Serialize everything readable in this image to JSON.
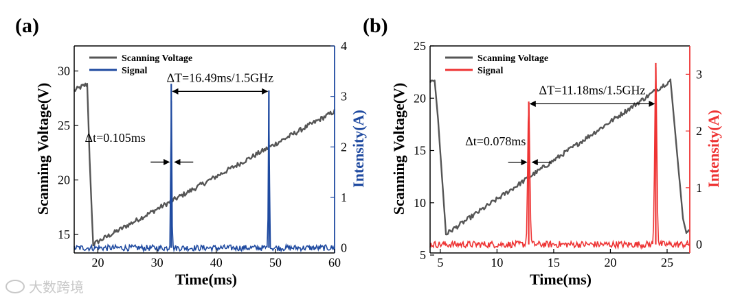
{
  "watermark": "大数跨境",
  "chart_data": [
    {
      "panel_label": "(a)",
      "type": "line",
      "xlabel": "Time(ms)",
      "ylabel_left": "Scanning Voltage(V)",
      "ylabel_right": "Intensity(A)",
      "right_axis_color": "#1f4aa0",
      "xlim": [
        16,
        60
      ],
      "ylim_left": [
        13.3,
        32.3
      ],
      "ylim_right": [
        -0.1,
        4
      ],
      "xticks": [
        20,
        30,
        40,
        50,
        60
      ],
      "yticks_left": [
        15,
        20,
        25,
        30
      ],
      "yticks_right": [
        0,
        1,
        2,
        3,
        4
      ],
      "legend": [
        "Scanning Voltage",
        "Signal"
      ],
      "series": [
        {
          "name": "Scanning Voltage",
          "axis": "left",
          "color": "#555555",
          "points": [
            [
              16,
              28.2
            ],
            [
              17.4,
              28.6
            ],
            [
              18.2,
              28.8
            ],
            [
              18.6,
              22
            ],
            [
              19.2,
              14.1
            ],
            [
              60,
              26.3
            ]
          ]
        },
        {
          "name": "Signal",
          "axis": "right",
          "color": "#1f4aa0",
          "baseline": 0,
          "peaks": [
            {
              "x": 32.4,
              "y": 3.25
            },
            {
              "x": 48.9,
              "y": 3.12
            }
          ]
        }
      ],
      "annotations": {
        "delta_T": {
          "text": "ΔT=16.49ms/1.5GHz",
          "x_start": 32.4,
          "x_end": 48.9,
          "y": 3.1
        },
        "delta_t": {
          "text": "Δt=0.105ms",
          "x": 32.4,
          "y": 1.7,
          "label_x": 17.8,
          "label_y": 2.1
        }
      }
    },
    {
      "panel_label": "(b)",
      "type": "line",
      "xlabel": "Time(ms)",
      "ylabel_left": "Scanning Voltage(V)",
      "ylabel_right": "Intensity(A)",
      "right_axis_color": "#ee3333",
      "xlim": [
        4.1,
        27
      ],
      "ylim_left": [
        5.2,
        25
      ],
      "ylim_right": [
        -0.15,
        3.5
      ],
      "xticks": [
        5,
        10,
        15,
        20,
        25
      ],
      "yticks_left": [
        5,
        10,
        15,
        20,
        25
      ],
      "yticks_right": [
        0,
        1,
        2,
        3
      ],
      "legend": [
        "Scanning Voltage",
        "Signal"
      ],
      "series": [
        {
          "name": "Scanning Voltage",
          "axis": "left",
          "color": "#555555",
          "points": [
            [
              4.1,
              21.6
            ],
            [
              4.5,
              21.7
            ],
            [
              4.8,
              18
            ],
            [
              5.5,
              7
            ],
            [
              25.3,
              21.7
            ],
            [
              26.4,
              8.5
            ],
            [
              26.7,
              7.1
            ],
            [
              27,
              7.4
            ]
          ]
        },
        {
          "name": "Signal",
          "axis": "right",
          "color": "#ee3333",
          "baseline": 0,
          "peaks": [
            {
              "x": 12.8,
              "y": 2.52
            },
            {
              "x": 24.0,
              "y": 3.2
            }
          ]
        }
      ],
      "annotations": {
        "delta_T": {
          "text": "ΔT=11.18ms/1.5GHz",
          "x_start": 12.8,
          "x_end": 24.0,
          "y": 2.48
        },
        "delta_t": {
          "text": "Δt=0.078ms",
          "x": 12.8,
          "y": 1.45,
          "label_x": 7.2,
          "label_y": 1.75
        }
      }
    }
  ]
}
